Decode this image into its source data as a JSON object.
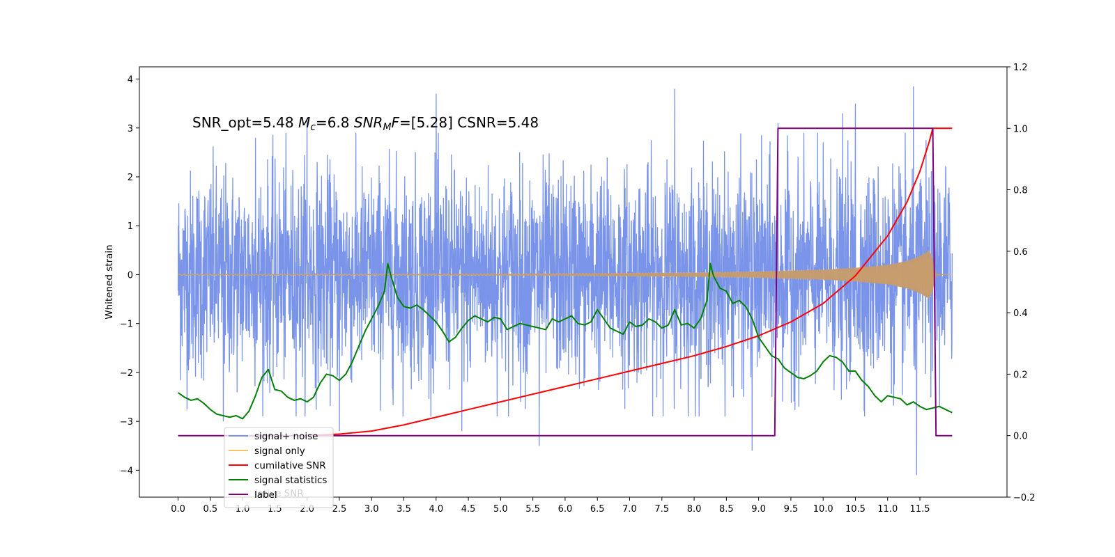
{
  "chart_data": {
    "type": "line",
    "title": "",
    "xlabel": "",
    "ylabel": "Whitened strain",
    "xlim": [
      -0.6,
      12.85
    ],
    "ylim": [
      -4.55,
      4.25
    ],
    "y2lim": [
      -0.2,
      1.2
    ],
    "xticks": [
      0.0,
      0.5,
      1.0,
      1.5,
      2.0,
      2.5,
      3.0,
      3.5,
      4.0,
      4.5,
      5.0,
      5.5,
      6.0,
      6.5,
      7.0,
      7.5,
      8.0,
      8.5,
      9.0,
      9.5,
      10.0,
      10.5,
      11.0,
      11.5
    ],
    "xtick_labels": [
      "0.0",
      "0.5",
      "1.0",
      "1.5",
      "2.0",
      "2.5",
      "3.0",
      "3.5",
      "4.0",
      "4.5",
      "5.0",
      "5.5",
      "6.0",
      "6.5",
      "7.0",
      "7.5",
      "8.0",
      "8.5",
      "9.0",
      "9.5",
      "10.0",
      "10.5",
      "11.0",
      "11.5"
    ],
    "yticks": [
      -4,
      -3,
      -2,
      -1,
      0,
      1,
      2,
      3,
      4
    ],
    "ytick_labels": [
      "−4",
      "−3",
      "−2",
      "−1",
      "0",
      "1",
      "2",
      "3",
      "4"
    ],
    "y2ticks": [
      -0.2,
      0.0,
      0.2,
      0.4,
      0.6,
      0.8,
      1.0,
      1.2
    ],
    "y2tick_labels": [
      "−0.2",
      "0.0",
      "0.2",
      "0.4",
      "0.6",
      "0.8",
      "1.0",
      "1.2"
    ],
    "annotation": {
      "part1": "SNR_opt=5.48   ",
      "mc_main": "M",
      "mc_sub": "c",
      "part2": "=6.8     ",
      "snr_main": "SNR",
      "snr_sub": "M",
      "snr_F": "F",
      "part3": "=[5.28]    CSNR=5.48"
    },
    "legend": {
      "position": "lower-left",
      "entries": [
        {
          "label": "signal+ noise",
          "color": "#7994e8"
        },
        {
          "label": "signal only",
          "color": "#ffc163"
        },
        {
          "label": "cumilative SNR",
          "color": "#ff0000"
        },
        {
          "label": "signal statistics",
          "color": "#008000"
        },
        {
          "label": "label",
          "color": "#800080"
        }
      ],
      "ghost_text": "lative SNR"
    },
    "series": [
      {
        "name": "signal+ noise",
        "axis": "left",
        "color": "#7994e8",
        "style": "noise",
        "x_range": [
          0.0,
          12.0
        ],
        "core_amplitude": [
          -1.4,
          1.4
        ],
        "extreme_values": [
          [
            0.7,
            -3.0
          ],
          [
            1.2,
            2.8
          ],
          [
            2.0,
            3.2
          ],
          [
            2.5,
            -3.2
          ],
          [
            4.0,
            3.7
          ],
          [
            4.4,
            -3.2
          ],
          [
            5.6,
            -3.5
          ],
          [
            7.7,
            3.8
          ],
          [
            8.9,
            -3.6
          ],
          [
            9.3,
            3.1
          ],
          [
            10.3,
            3.3
          ],
          [
            10.5,
            3.5
          ],
          [
            11.4,
            3.85
          ],
          [
            11.45,
            -4.1
          ],
          [
            11.9,
            2.2
          ]
        ]
      },
      {
        "name": "signal only",
        "axis": "left",
        "color": "#ffc163",
        "style": "chirp",
        "x_range": [
          0.0,
          12.0
        ],
        "envelope": [
          [
            0.0,
            0.01
          ],
          [
            3.0,
            0.01
          ],
          [
            6.0,
            0.02
          ],
          [
            8.0,
            0.04
          ],
          [
            9.0,
            0.06
          ],
          [
            10.0,
            0.1
          ],
          [
            10.5,
            0.14
          ],
          [
            11.0,
            0.2
          ],
          [
            11.3,
            0.28
          ],
          [
            11.5,
            0.38
          ],
          [
            11.65,
            0.5
          ],
          [
            11.7,
            0.3
          ],
          [
            11.75,
            0.02
          ],
          [
            12.0,
            0.0
          ]
        ]
      },
      {
        "name": "cumilative SNR",
        "axis": "right",
        "color": "#ff0000",
        "style": "line",
        "points": [
          [
            1.9,
            0.0
          ],
          [
            2.5,
            0.005
          ],
          [
            3.0,
            0.015
          ],
          [
            3.5,
            0.035
          ],
          [
            4.0,
            0.06
          ],
          [
            4.5,
            0.085
          ],
          [
            5.0,
            0.11
          ],
          [
            5.5,
            0.135
          ],
          [
            6.0,
            0.16
          ],
          [
            6.5,
            0.185
          ],
          [
            7.0,
            0.21
          ],
          [
            7.5,
            0.235
          ],
          [
            8.0,
            0.26
          ],
          [
            8.5,
            0.29
          ],
          [
            9.0,
            0.325
          ],
          [
            9.5,
            0.37
          ],
          [
            10.0,
            0.43
          ],
          [
            10.5,
            0.52
          ],
          [
            11.0,
            0.65
          ],
          [
            11.3,
            0.76
          ],
          [
            11.5,
            0.86
          ],
          [
            11.65,
            0.96
          ],
          [
            11.7,
            1.0
          ],
          [
            12.0,
            1.0
          ]
        ]
      },
      {
        "name": "signal statistics",
        "axis": "right",
        "color": "#008000",
        "style": "line",
        "points": [
          [
            0.0,
            0.14
          ],
          [
            0.1,
            0.125
          ],
          [
            0.2,
            0.115
          ],
          [
            0.3,
            0.12
          ],
          [
            0.4,
            0.105
          ],
          [
            0.5,
            0.085
          ],
          [
            0.6,
            0.07
          ],
          [
            0.8,
            0.06
          ],
          [
            0.9,
            0.065
          ],
          [
            1.0,
            0.055
          ],
          [
            1.1,
            0.08
          ],
          [
            1.2,
            0.13
          ],
          [
            1.3,
            0.19
          ],
          [
            1.4,
            0.215
          ],
          [
            1.5,
            0.15
          ],
          [
            1.6,
            0.145
          ],
          [
            1.7,
            0.125
          ],
          [
            1.8,
            0.115
          ],
          [
            1.9,
            0.12
          ],
          [
            2.0,
            0.11
          ],
          [
            2.1,
            0.125
          ],
          [
            2.2,
            0.17
          ],
          [
            2.3,
            0.2
          ],
          [
            2.4,
            0.195
          ],
          [
            2.5,
            0.18
          ],
          [
            2.6,
            0.2
          ],
          [
            2.7,
            0.24
          ],
          [
            2.8,
            0.29
          ],
          [
            2.9,
            0.34
          ],
          [
            3.0,
            0.38
          ],
          [
            3.1,
            0.42
          ],
          [
            3.2,
            0.47
          ],
          [
            3.25,
            0.56
          ],
          [
            3.3,
            0.52
          ],
          [
            3.4,
            0.45
          ],
          [
            3.5,
            0.42
          ],
          [
            3.6,
            0.415
          ],
          [
            3.7,
            0.425
          ],
          [
            3.8,
            0.41
          ],
          [
            3.9,
            0.39
          ],
          [
            4.0,
            0.37
          ],
          [
            4.1,
            0.34
          ],
          [
            4.2,
            0.305
          ],
          [
            4.3,
            0.32
          ],
          [
            4.4,
            0.35
          ],
          [
            4.5,
            0.375
          ],
          [
            4.6,
            0.39
          ],
          [
            4.7,
            0.38
          ],
          [
            4.8,
            0.37
          ],
          [
            4.9,
            0.385
          ],
          [
            5.0,
            0.38
          ],
          [
            5.1,
            0.345
          ],
          [
            5.2,
            0.355
          ],
          [
            5.3,
            0.365
          ],
          [
            5.4,
            0.36
          ],
          [
            5.5,
            0.355
          ],
          [
            5.6,
            0.35
          ],
          [
            5.7,
            0.345
          ],
          [
            5.8,
            0.38
          ],
          [
            5.9,
            0.37
          ],
          [
            6.0,
            0.38
          ],
          [
            6.1,
            0.39
          ],
          [
            6.2,
            0.365
          ],
          [
            6.3,
            0.36
          ],
          [
            6.4,
            0.37
          ],
          [
            6.5,
            0.41
          ],
          [
            6.6,
            0.38
          ],
          [
            6.7,
            0.35
          ],
          [
            6.8,
            0.34
          ],
          [
            6.9,
            0.33
          ],
          [
            7.0,
            0.37
          ],
          [
            7.1,
            0.355
          ],
          [
            7.2,
            0.36
          ],
          [
            7.3,
            0.38
          ],
          [
            7.4,
            0.37
          ],
          [
            7.5,
            0.35
          ],
          [
            7.6,
            0.36
          ],
          [
            7.7,
            0.41
          ],
          [
            7.8,
            0.36
          ],
          [
            7.9,
            0.365
          ],
          [
            8.0,
            0.35
          ],
          [
            8.1,
            0.38
          ],
          [
            8.2,
            0.44
          ],
          [
            8.25,
            0.56
          ],
          [
            8.3,
            0.52
          ],
          [
            8.4,
            0.48
          ],
          [
            8.5,
            0.47
          ],
          [
            8.6,
            0.43
          ],
          [
            8.7,
            0.44
          ],
          [
            8.8,
            0.42
          ],
          [
            8.9,
            0.38
          ],
          [
            9.0,
            0.32
          ],
          [
            9.1,
            0.29
          ],
          [
            9.2,
            0.26
          ],
          [
            9.3,
            0.25
          ],
          [
            9.4,
            0.22
          ],
          [
            9.5,
            0.205
          ],
          [
            9.6,
            0.19
          ],
          [
            9.7,
            0.185
          ],
          [
            9.8,
            0.195
          ],
          [
            9.9,
            0.21
          ],
          [
            10.0,
            0.24
          ],
          [
            10.1,
            0.26
          ],
          [
            10.2,
            0.255
          ],
          [
            10.3,
            0.24
          ],
          [
            10.4,
            0.21
          ],
          [
            10.5,
            0.21
          ],
          [
            10.6,
            0.18
          ],
          [
            10.7,
            0.16
          ],
          [
            10.8,
            0.13
          ],
          [
            10.9,
            0.11
          ],
          [
            11.0,
            0.13
          ],
          [
            11.1,
            0.125
          ],
          [
            11.2,
            0.12
          ],
          [
            11.3,
            0.1
          ],
          [
            11.4,
            0.11
          ],
          [
            11.5,
            0.095
          ],
          [
            11.6,
            0.085
          ],
          [
            11.7,
            0.09
          ],
          [
            11.8,
            0.095
          ],
          [
            11.9,
            0.085
          ],
          [
            12.0,
            0.075
          ]
        ]
      },
      {
        "name": "label",
        "axis": "right",
        "color": "#800080",
        "style": "line",
        "points": [
          [
            0.0,
            0.0
          ],
          [
            9.25,
            0.0
          ],
          [
            9.3,
            1.0
          ],
          [
            11.7,
            1.0
          ],
          [
            11.75,
            0.0
          ],
          [
            12.0,
            0.0
          ]
        ]
      }
    ]
  }
}
